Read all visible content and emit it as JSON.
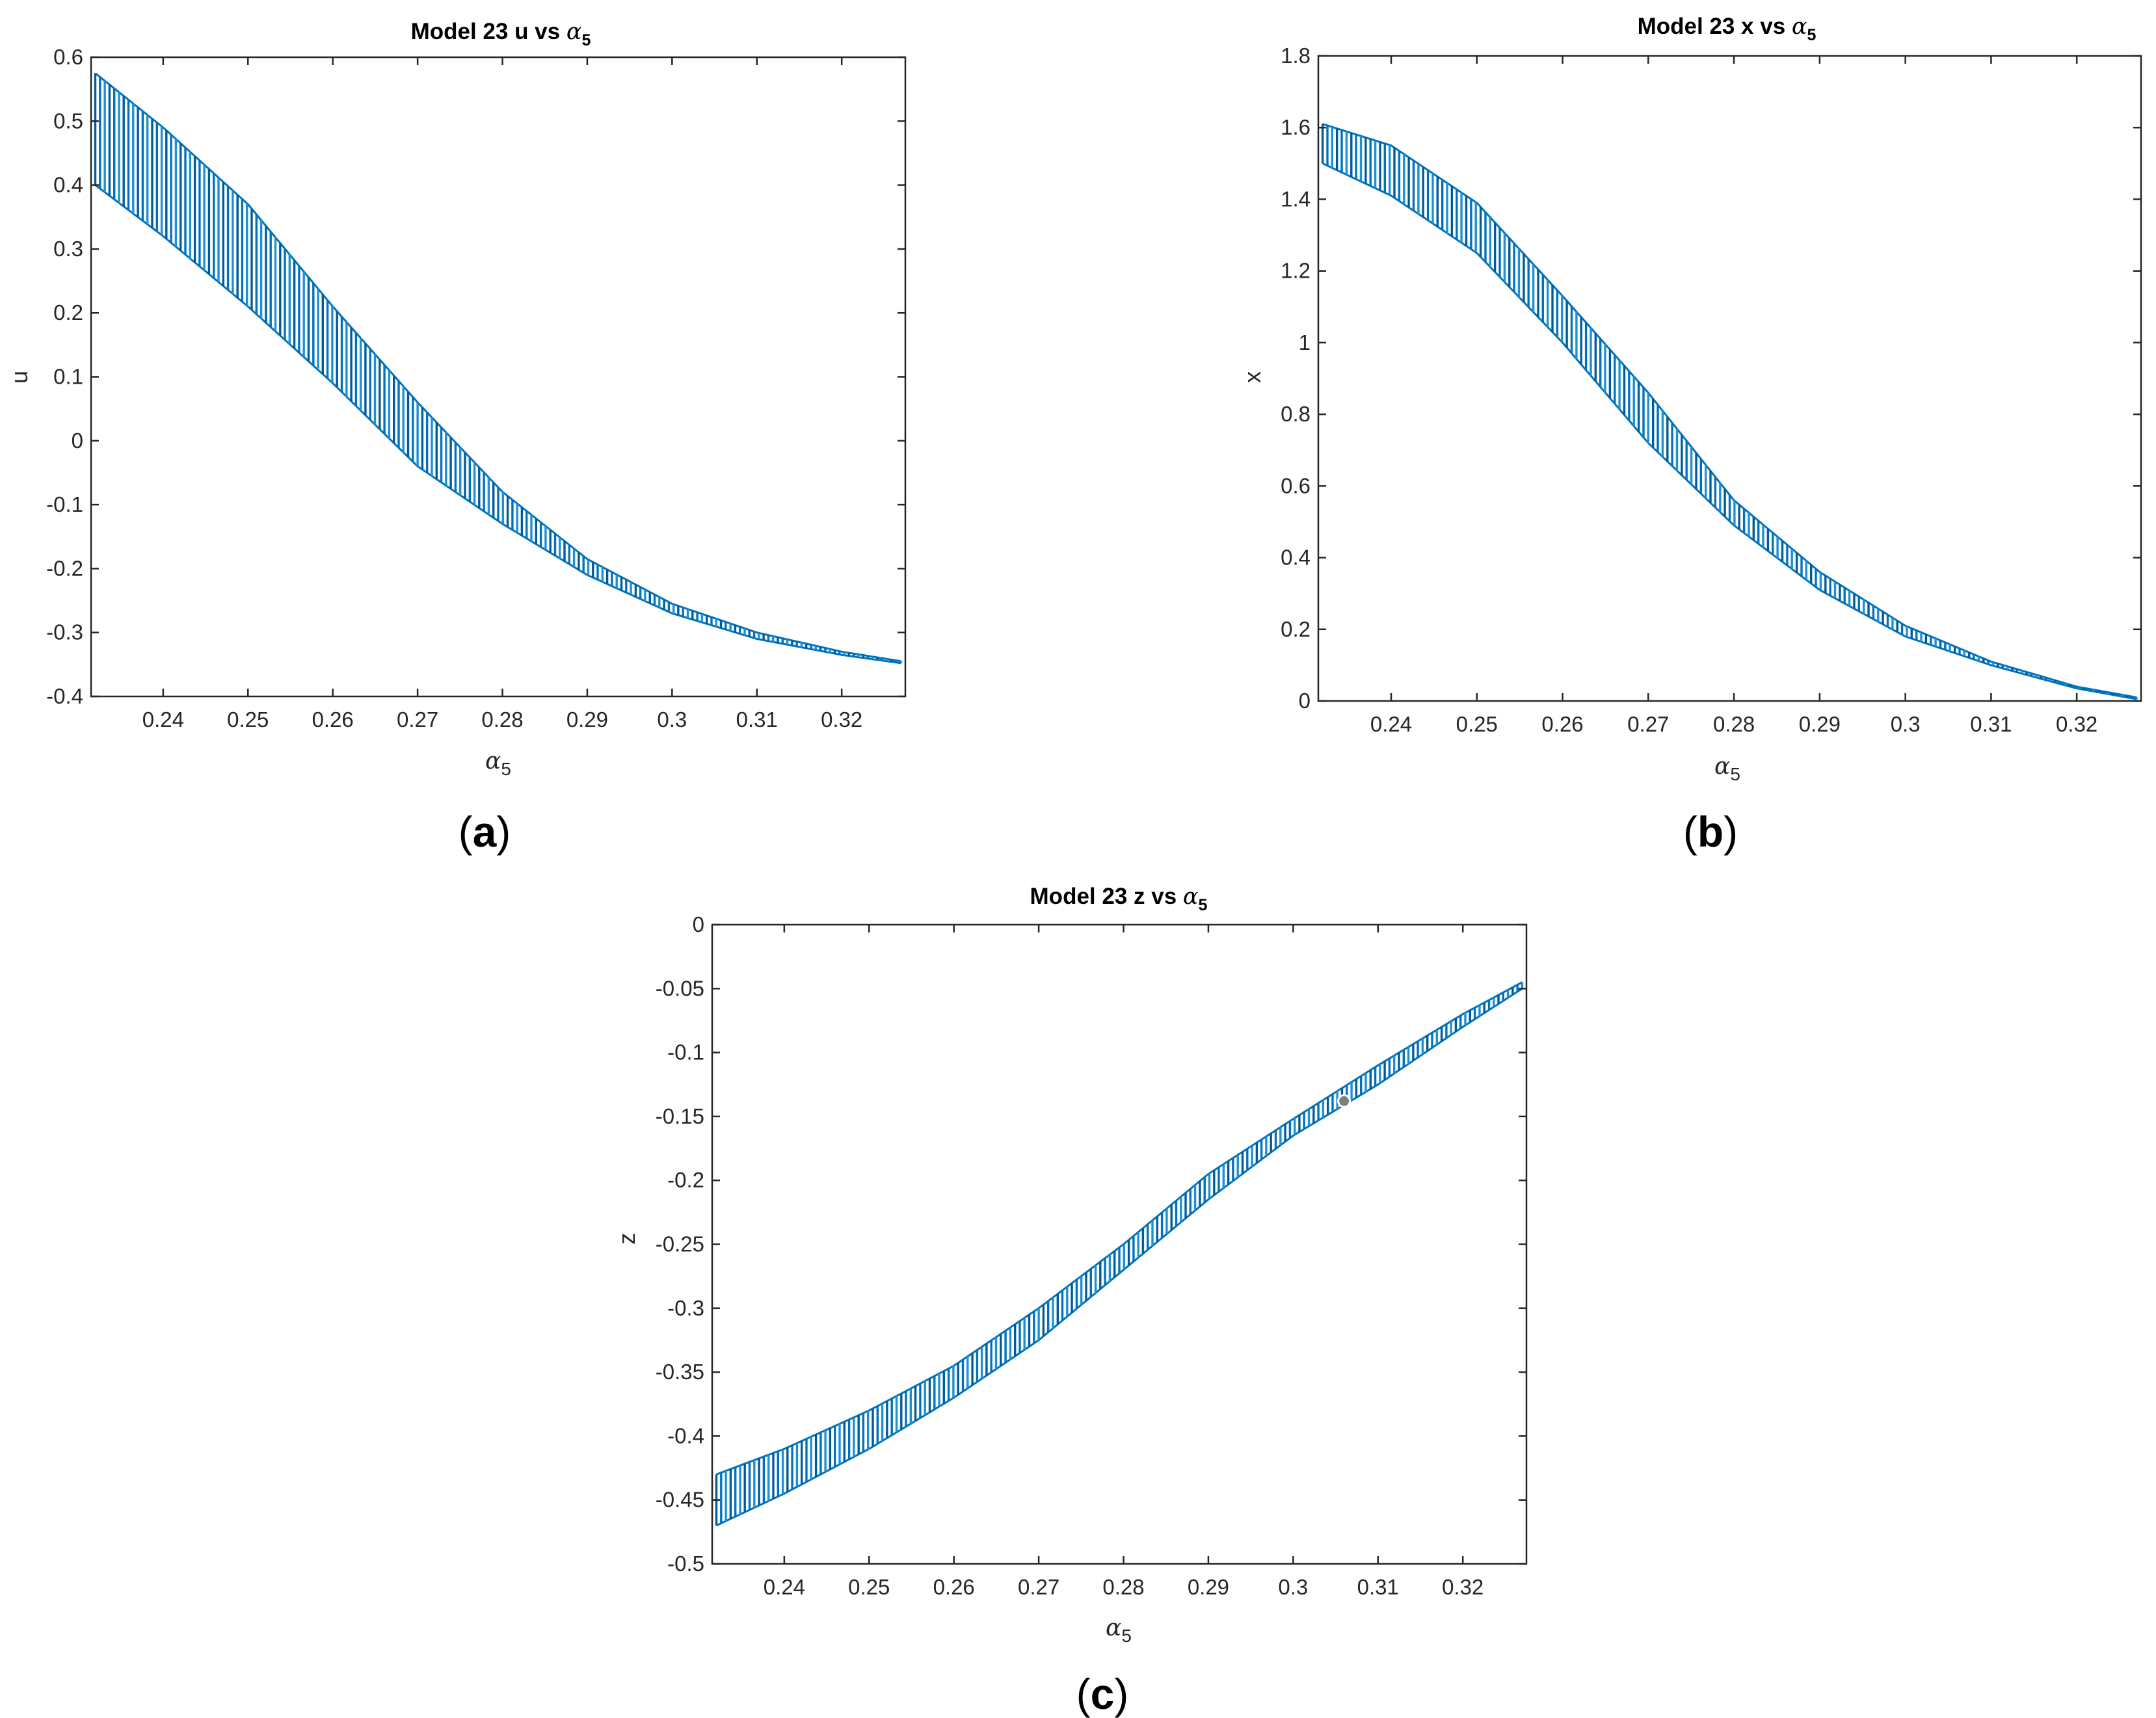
{
  "colors": {
    "series": "#0072BD",
    "axis": "#262626",
    "marker": "#7f7f7f"
  },
  "chart_data": [
    {
      "id": "a",
      "panel_label": "a",
      "type": "scatter",
      "title": {
        "prefix": "Model 23 u vs ",
        "greek": "α",
        "sub": "5"
      },
      "xlabel": {
        "greek": "α",
        "sub": "5"
      },
      "ylabel": "u",
      "xlim": [
        0.2315,
        0.3275
      ],
      "ylim": [
        -0.4,
        0.6
      ],
      "xticks": [
        "0.24",
        "0.25",
        "0.26",
        "0.27",
        "0.28",
        "0.29",
        "0.3",
        "0.31",
        "0.32"
      ],
      "yticks": [
        "-0.4",
        "-0.3",
        "-0.2",
        "-0.1",
        "0",
        "0.1",
        "0.2",
        "0.3",
        "0.4",
        "0.5",
        "0.6"
      ],
      "grid": false,
      "series": [
        {
          "name": "upper edge",
          "x": [
            0.232,
            0.24,
            0.25,
            0.26,
            0.27,
            0.28,
            0.29,
            0.3,
            0.31,
            0.32,
            0.327
          ],
          "y": [
            0.575,
            0.49,
            0.37,
            0.21,
            0.06,
            -0.08,
            -0.185,
            -0.255,
            -0.3,
            -0.33,
            -0.345
          ]
        },
        {
          "name": "lower edge",
          "x": [
            0.232,
            0.24,
            0.25,
            0.26,
            0.27,
            0.28,
            0.29,
            0.3,
            0.31,
            0.32,
            0.327
          ],
          "y": [
            0.4,
            0.32,
            0.21,
            0.09,
            -0.04,
            -0.13,
            -0.21,
            -0.27,
            -0.31,
            -0.335,
            -0.348
          ]
        }
      ]
    },
    {
      "id": "b",
      "panel_label": "b",
      "type": "scatter",
      "title": {
        "prefix": "Model 23  x vs ",
        "greek": "α",
        "sub": "5"
      },
      "xlabel": {
        "greek": "α",
        "sub": "5"
      },
      "ylabel": "x",
      "xlim": [
        0.2315,
        0.3275
      ],
      "ylim": [
        0,
        1.8
      ],
      "xticks": [
        "0.24",
        "0.25",
        "0.26",
        "0.27",
        "0.28",
        "0.29",
        "0.3",
        "0.31",
        "0.32"
      ],
      "yticks": [
        "0",
        "0.2",
        "0.4",
        "0.6",
        "0.8",
        "1",
        "1.2",
        "1.4",
        "1.6",
        "1.8"
      ],
      "grid": false,
      "series": [
        {
          "name": "upper edge",
          "x": [
            0.232,
            0.24,
            0.25,
            0.26,
            0.27,
            0.28,
            0.29,
            0.3,
            0.31,
            0.32,
            0.327
          ],
          "y": [
            1.61,
            1.55,
            1.39,
            1.13,
            0.86,
            0.56,
            0.36,
            0.21,
            0.11,
            0.04,
            0.01
          ]
        },
        {
          "name": "lower edge",
          "x": [
            0.232,
            0.24,
            0.25,
            0.26,
            0.27,
            0.28,
            0.29,
            0.3,
            0.31,
            0.32,
            0.327
          ],
          "y": [
            1.5,
            1.41,
            1.25,
            1.0,
            0.72,
            0.49,
            0.31,
            0.18,
            0.1,
            0.035,
            0.005
          ]
        }
      ]
    },
    {
      "id": "c",
      "panel_label": "c",
      "type": "scatter",
      "title": {
        "prefix": "Model 23  z vs ",
        "greek": "α",
        "sub": "5"
      },
      "xlabel": {
        "greek": "α",
        "sub": "5"
      },
      "ylabel": "z",
      "xlim": [
        0.2315,
        0.3275
      ],
      "ylim": [
        -0.5,
        0
      ],
      "xticks": [
        "0.24",
        "0.25",
        "0.26",
        "0.27",
        "0.28",
        "0.29",
        "0.3",
        "0.31",
        "0.32"
      ],
      "yticks": [
        "-0.5",
        "-0.45",
        "-0.4",
        "-0.35",
        "-0.3",
        "-0.25",
        "-0.2",
        "-0.15",
        "-0.1",
        "-0.05",
        "0"
      ],
      "grid": false,
      "series": [
        {
          "name": "upper edge",
          "x": [
            0.232,
            0.24,
            0.25,
            0.26,
            0.27,
            0.28,
            0.29,
            0.3,
            0.31,
            0.32,
            0.327
          ],
          "y": [
            -0.43,
            -0.41,
            -0.38,
            -0.345,
            -0.3,
            -0.25,
            -0.195,
            -0.152,
            -0.11,
            -0.07,
            -0.045
          ]
        },
        {
          "name": "lower edge",
          "x": [
            0.232,
            0.24,
            0.25,
            0.26,
            0.27,
            0.28,
            0.29,
            0.3,
            0.31,
            0.32,
            0.327
          ],
          "y": [
            -0.47,
            -0.445,
            -0.41,
            -0.37,
            -0.325,
            -0.27,
            -0.215,
            -0.165,
            -0.125,
            -0.08,
            -0.05
          ]
        }
      ],
      "highlight_point": {
        "x": 0.306,
        "y": -0.138
      }
    }
  ]
}
